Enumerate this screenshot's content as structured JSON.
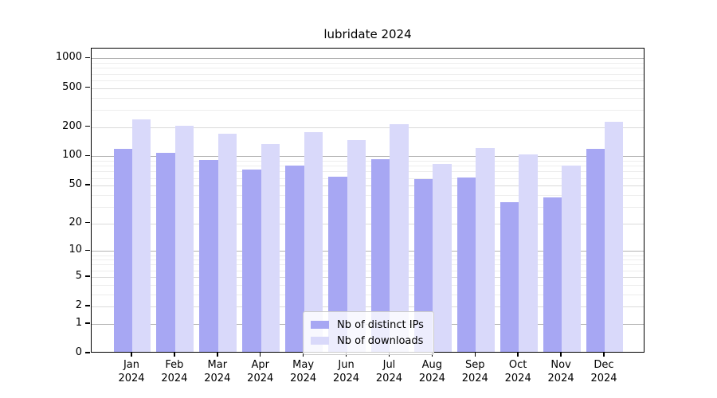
{
  "chart_data": {
    "type": "bar",
    "title": "lubridate 2024",
    "y_scale": "log1p",
    "grid": "horizontal",
    "x_tick_year": "2024",
    "x_categories": [
      "Jan",
      "Feb",
      "Mar",
      "Apr",
      "May",
      "Jun",
      "Jul",
      "Aug",
      "Sep",
      "Oct",
      "Nov",
      "Dec"
    ],
    "series": [
      {
        "name": "Nb of distinct IPs",
        "color": "#a7a7f3",
        "values": [
          115,
          105,
          88,
          70,
          77,
          60,
          91,
          56,
          58,
          32,
          36,
          115
        ]
      },
      {
        "name": "Nb of downloads",
        "color": "#d9d9fa",
        "values": [
          230,
          200,
          165,
          130,
          172,
          142,
          207,
          81,
          118,
          100,
          77,
          218
        ]
      }
    ],
    "y_ticks": [
      0,
      1,
      2,
      5,
      10,
      20,
      50,
      100,
      200,
      500,
      1000
    ],
    "y_minor_ticks": [
      3,
      4,
      6,
      7,
      8,
      9,
      30,
      40,
      60,
      70,
      80,
      90,
      300,
      400,
      600,
      700,
      800,
      900
    ],
    "ylim": [
      0,
      1262
    ],
    "legend_position": "lower center"
  },
  "colors": {
    "grid_major": "#b3b3b3",
    "grid_mid": "#dadada",
    "grid_minor": "#ededed",
    "axis": "#000000",
    "background": "#ffffff"
  }
}
